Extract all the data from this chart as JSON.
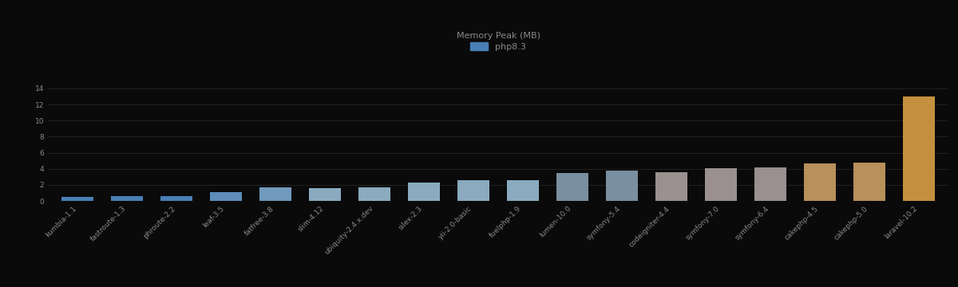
{
  "title": "Memory Peak (MB)",
  "legend_label": "php8.3",
  "background_color": "#0a0a0a",
  "text_color": "#888888",
  "categories": [
    "kumbia-1.1",
    "fastroute-1.3",
    "phroute-2.2",
    "leaf-3.5",
    "fatfree-3.8",
    "slim-4.12",
    "ubiquity-2.4.x.dev",
    "silex-2.3",
    "yii-2.0-basic",
    "fuelphp-1.9",
    "lumen-10.0",
    "symfony-5.4",
    "codeigniter-4.4",
    "symfony-7.0",
    "symfony-6.4",
    "cakephp-4.5",
    "cakephp-5.0",
    "laravel-10.2"
  ],
  "values": [
    0.5,
    0.55,
    0.55,
    1.1,
    1.65,
    1.6,
    1.7,
    2.25,
    2.6,
    2.6,
    3.5,
    3.8,
    3.6,
    4.1,
    4.15,
    4.65,
    4.75,
    13.0
  ],
  "bar_colors": [
    "#4a7fb5",
    "#4a7fb5",
    "#4a7fb5",
    "#5d8db8",
    "#7099bb",
    "#8aaabf",
    "#8aaabf",
    "#8aaabf",
    "#8aaabf",
    "#8aaabf",
    "#7a8fa0",
    "#7a8fa0",
    "#9a9090",
    "#9a9090",
    "#9a9090",
    "#b8905a",
    "#b8905a",
    "#c49040"
  ],
  "legend_color": "#4a7fb5",
  "ylim": [
    0,
    15
  ],
  "yticks": [
    0,
    2,
    4,
    6,
    8,
    10,
    12,
    14
  ],
  "grid_color": "#2a2a2a",
  "title_fontsize": 8,
  "tick_fontsize": 6.5,
  "legend_fontsize": 8
}
